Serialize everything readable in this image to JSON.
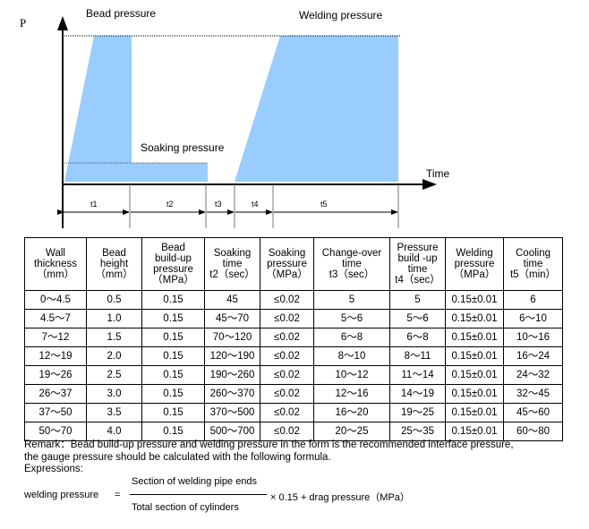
{
  "diagram": {
    "y_label": "P",
    "x_label": "Time",
    "labels": {
      "bead": "Bead pressure",
      "soaking": "Soaking pressure",
      "welding": "Welding pressure"
    },
    "intervals": [
      "t1",
      "t2",
      "t3",
      "t4",
      "t5"
    ],
    "fill_color": "#99CCFF"
  },
  "table": {
    "headers": [
      [
        "Wall",
        "thickness",
        "（mm）"
      ],
      [
        "Bead",
        "height",
        "（mm）"
      ],
      [
        "Bead",
        "build-up",
        "pressure",
        "（MPa）"
      ],
      [
        "Soaking",
        "time",
        "t2（sec）"
      ],
      [
        "Soaking",
        "pressure",
        "（MPa）"
      ],
      [
        "Change-over",
        "time",
        "t3（sec）"
      ],
      [
        "Pressure",
        "build -up",
        "time",
        "t4（sec）"
      ],
      [
        "Welding",
        "pressure",
        "（MPa）"
      ],
      [
        "Cooling",
        "time",
        "t5（min）"
      ]
    ],
    "rows": [
      [
        "0～4.5",
        "0.5",
        "0.15",
        "45",
        "≤0.02",
        "5",
        "5",
        "0.15±0.01",
        "6"
      ],
      [
        "4.5～7",
        "1.0",
        "0.15",
        "45～70",
        "≤0.02",
        "5～6",
        "5～6",
        "0.15±0.01",
        "6～10"
      ],
      [
        "7～12",
        "1.5",
        "0.15",
        "70～120",
        "≤0.02",
        "6～8",
        "6～8",
        "0.15±0.01",
        "10～16"
      ],
      [
        "12～19",
        "2.0",
        "0.15",
        "120～190",
        "≤0.02",
        "8～10",
        "8～11",
        "0.15±0.01",
        "16～24"
      ],
      [
        "19～26",
        "2.5",
        "0.15",
        "190～260",
        "≤0.02",
        "10～12",
        "11～14",
        "0.15±0.01",
        "24～32"
      ],
      [
        "26～37",
        "3.0",
        "0.15",
        "260～370",
        "≤0.02",
        "12～16",
        "14～19",
        "0.15±0.01",
        "32～45"
      ],
      [
        "37～50",
        "3.5",
        "0.15",
        "370～500",
        "≤0.02",
        "16～20",
        "19～25",
        "0.15±0.01",
        "45～60"
      ],
      [
        "50～70",
        "4.0",
        "0.15",
        "500～700",
        "≤0.02",
        "20～25",
        "25～35",
        "0.15±0.01",
        "60～80"
      ]
    ]
  },
  "remark": {
    "line1": "Remark：Bead build-up pressure and welding pressure in the form is the recommended interface pressure,",
    "line2": "the gauge pressure should be calculated with the following formula.",
    "expressions": "Expressions:"
  },
  "formula": {
    "lhs": "welding pressure",
    "equals": "=",
    "numerator": "Section of welding pipe ends",
    "denominator": "Total section of cylinders",
    "tail": "× 0.15 + drag pressure（MPa）"
  }
}
